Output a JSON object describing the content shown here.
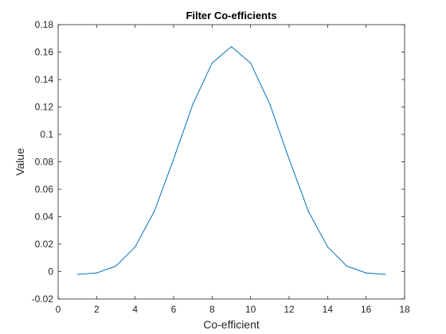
{
  "chart_data": {
    "type": "line",
    "title": "Filter Co-efficients",
    "xlabel": "Co-efficient",
    "ylabel": "Value",
    "xlim": [
      0,
      18
    ],
    "ylim": [
      -0.02,
      0.18
    ],
    "x_ticks": [
      0,
      2,
      4,
      6,
      8,
      10,
      12,
      14,
      16,
      18
    ],
    "x_tick_labels": [
      "0",
      "2",
      "4",
      "6",
      "8",
      "10",
      "12",
      "14",
      "16",
      "18"
    ],
    "y_ticks": [
      -0.02,
      0,
      0.02,
      0.04,
      0.06,
      0.08,
      0.1,
      0.12,
      0.14,
      0.16,
      0.18
    ],
    "y_tick_labels": [
      "-0.02",
      "0",
      "0.02",
      "0.04",
      "0.06",
      "0.08",
      "0.1",
      "0.12",
      "0.14",
      "0.16",
      "0.18"
    ],
    "grid": false,
    "box": true,
    "series": [
      {
        "color": "#0072bd",
        "x": [
          1,
          2,
          3,
          4,
          5,
          6,
          7,
          8,
          9,
          10,
          11,
          12,
          13,
          14,
          15,
          16,
          17
        ],
        "y": [
          -0.002,
          -0.001,
          0.004,
          0.018,
          0.044,
          0.082,
          0.122,
          0.152,
          0.164,
          0.152,
          0.122,
          0.082,
          0.044,
          0.018,
          0.004,
          -0.001,
          -0.002
        ]
      }
    ]
  }
}
